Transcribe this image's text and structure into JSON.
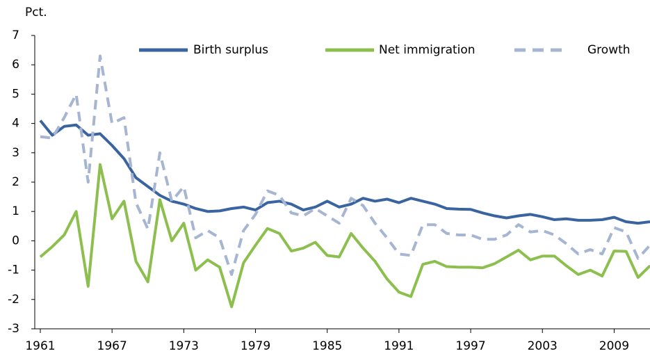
{
  "chart_data": {
    "type": "line",
    "y_label": "Pct.",
    "x": [
      1961,
      1962,
      1963,
      1964,
      1965,
      1966,
      1967,
      1968,
      1969,
      1970,
      1971,
      1972,
      1973,
      1974,
      1975,
      1976,
      1977,
      1978,
      1979,
      1980,
      1981,
      1982,
      1983,
      1984,
      1985,
      1986,
      1987,
      1988,
      1989,
      1990,
      1991,
      1992,
      1993,
      1994,
      1995,
      1996,
      1997,
      1998,
      1999,
      2000,
      2001,
      2002,
      2003,
      2004,
      2005,
      2006,
      2007,
      2008,
      2009,
      2010,
      2011,
      2012
    ],
    "series": [
      {
        "name": "Birth surplus",
        "color": "#3a64a0",
        "dashed": false,
        "values": [
          4.1,
          3.6,
          3.9,
          3.95,
          3.6,
          3.65,
          3.25,
          2.8,
          2.15,
          1.85,
          1.55,
          1.35,
          1.25,
          1.1,
          1.0,
          1.02,
          1.1,
          1.15,
          1.05,
          1.3,
          1.35,
          1.25,
          1.05,
          1.15,
          1.35,
          1.15,
          1.25,
          1.45,
          1.35,
          1.42,
          1.3,
          1.45,
          1.35,
          1.25,
          1.1,
          1.08,
          1.07,
          0.95,
          0.85,
          0.78,
          0.85,
          0.9,
          0.82,
          0.72,
          0.75,
          0.7,
          0.7,
          0.72,
          0.8,
          0.65,
          0.6,
          0.65
        ]
      },
      {
        "name": "Net immigration",
        "color": "#8dbf4e",
        "dashed": false,
        "values": [
          -0.55,
          -0.2,
          0.2,
          1.0,
          -1.55,
          2.6,
          0.75,
          1.35,
          -0.7,
          -1.4,
          1.4,
          0.0,
          0.6,
          -1.0,
          -0.65,
          -0.9,
          -2.25,
          -0.75,
          -0.15,
          0.42,
          0.25,
          -0.35,
          -0.25,
          -0.05,
          -0.5,
          -0.55,
          0.25,
          -0.25,
          -0.7,
          -1.3,
          -1.75,
          -1.9,
          -0.8,
          -0.7,
          -0.88,
          -0.9,
          -0.9,
          -0.92,
          -0.78,
          -0.55,
          -0.32,
          -0.65,
          -0.52,
          -0.52,
          -0.85,
          -1.15,
          -1.0,
          -1.2,
          -0.35,
          -0.36,
          -1.25,
          -0.85
        ]
      },
      {
        "name": "Growth",
        "color": "#a5b5d2",
        "dashed": true,
        "values": [
          3.55,
          3.5,
          4.2,
          5.0,
          2.0,
          6.3,
          4.0,
          4.2,
          1.3,
          0.4,
          3.0,
          1.35,
          1.85,
          0.1,
          0.35,
          0.1,
          -1.15,
          0.35,
          0.9,
          1.7,
          1.55,
          0.95,
          0.85,
          1.1,
          0.85,
          0.6,
          1.45,
          1.2,
          0.6,
          0.1,
          -0.45,
          -0.5,
          0.55,
          0.55,
          0.25,
          0.2,
          0.2,
          0.05,
          0.05,
          0.2,
          0.55,
          0.3,
          0.35,
          0.2,
          -0.1,
          -0.45,
          -0.3,
          -0.45,
          0.45,
          0.3,
          -0.6,
          -0.15
        ]
      }
    ],
    "xlim": [
      1961,
      2012
    ],
    "xticks": [
      1961,
      1967,
      1973,
      1979,
      1985,
      1991,
      1997,
      2003,
      2009
    ],
    "ylim": [
      -3,
      7
    ],
    "yticks": [
      -3,
      -2,
      -1,
      0,
      1,
      2,
      3,
      4,
      5,
      6,
      7
    ],
    "grid": false,
    "legend": "top"
  }
}
